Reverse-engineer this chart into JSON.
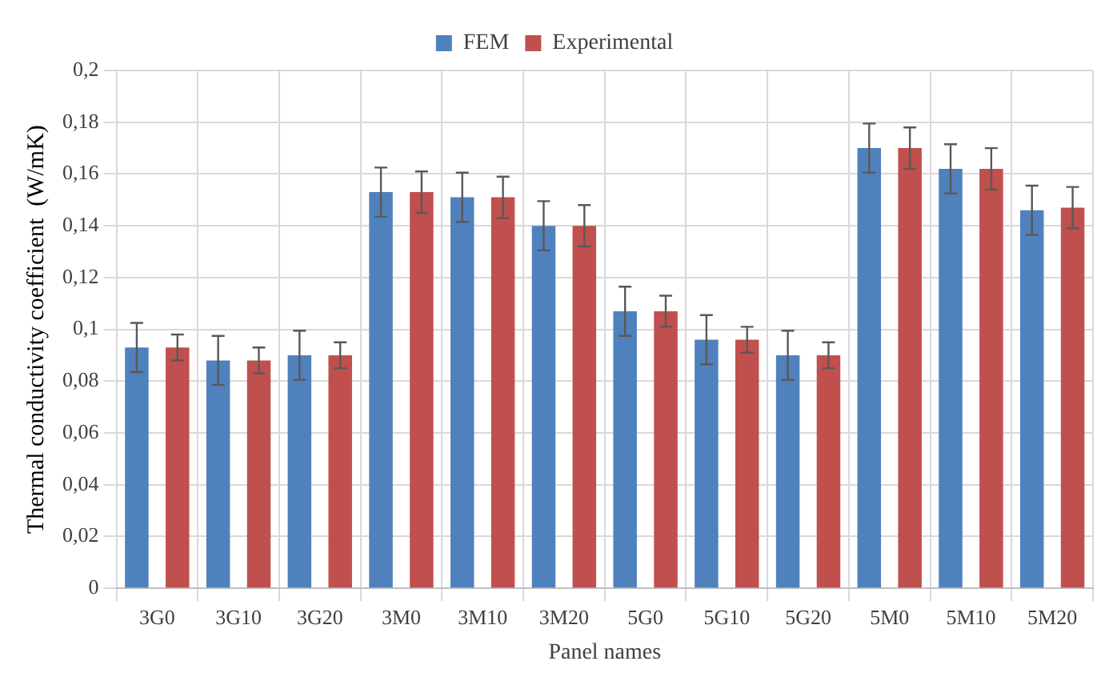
{
  "chart_data": {
    "type": "bar",
    "xlabel": "Panel names",
    "ylabel": "Thermal conductivity coefficient  (W/mK)",
    "categories": [
      "3G0",
      "3G10",
      "3G20",
      "3M0",
      "3M10",
      "3M20",
      "5G0",
      "5G10",
      "5G20",
      "5M0",
      "5M10",
      "5M20"
    ],
    "series": [
      {
        "name": "FEM",
        "color": "#4f81bd",
        "values": [
          0.093,
          0.088,
          0.09,
          0.153,
          0.151,
          0.14,
          0.107,
          0.096,
          0.09,
          0.17,
          0.162,
          0.146
        ],
        "errors": [
          0.0095,
          0.0095,
          0.0095,
          0.0095,
          0.0095,
          0.0095,
          0.0095,
          0.0095,
          0.0095,
          0.0095,
          0.0095,
          0.0095
        ]
      },
      {
        "name": "Experimental",
        "color": "#c0504d",
        "values": [
          0.093,
          0.088,
          0.09,
          0.153,
          0.151,
          0.14,
          0.107,
          0.096,
          0.09,
          0.17,
          0.162,
          0.147
        ],
        "errors": [
          0.005,
          0.005,
          0.005,
          0.008,
          0.008,
          0.008,
          0.006,
          0.005,
          0.005,
          0.008,
          0.008,
          0.008
        ]
      }
    ],
    "ylim": [
      0,
      0.2
    ],
    "yticks": [
      0,
      {
        "value": 0.02,
        "label": "0,02"
      },
      {
        "value": 0.04,
        "label": "0,04"
      },
      {
        "value": 0.06,
        "label": "0,06"
      },
      {
        "value": 0.08,
        "label": "0,08"
      },
      {
        "value": 0.1,
        "label": "0,1"
      },
      {
        "value": 0.12,
        "label": "0,12"
      },
      {
        "value": 0.14,
        "label": "0,14"
      },
      {
        "value": 0.16,
        "label": "0,16"
      },
      {
        "value": 0.18,
        "label": "0,18"
      },
      {
        "value": 0.2,
        "label": "0,2"
      }
    ],
    "grid": true,
    "legend": "top"
  }
}
